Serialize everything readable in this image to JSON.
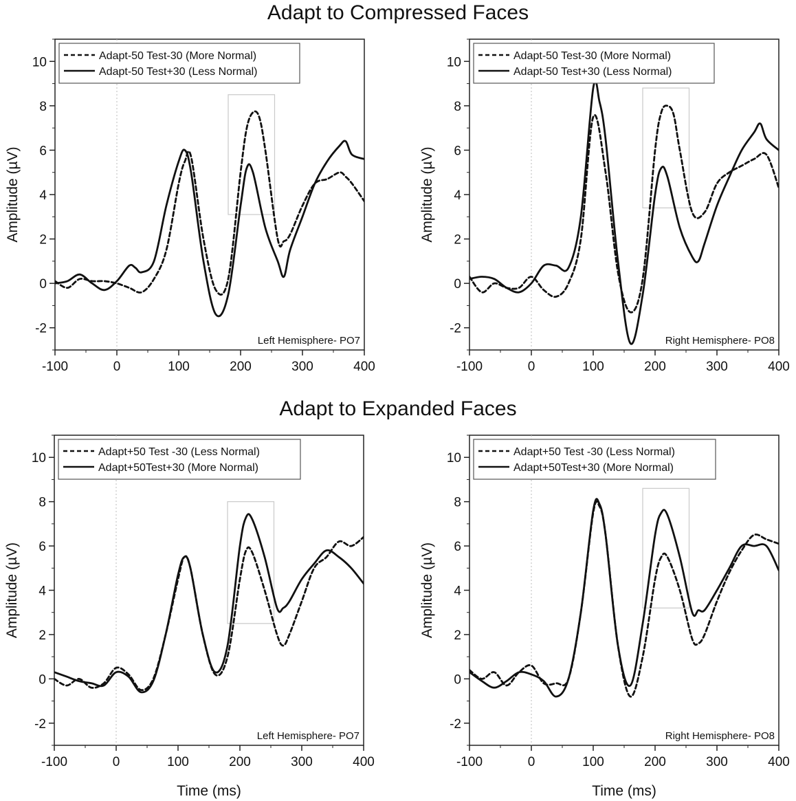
{
  "titles": {
    "top": "Adapt to Compressed Faces",
    "bottom": "Adapt to Expanded Faces"
  },
  "chart_data": [
    {
      "type": "line",
      "section": "top",
      "region_label": "Left Hemisphere- PO7",
      "ylabel": "Amplitude (µV)",
      "xlabel": "",
      "xlim": [
        -100,
        400
      ],
      "ylim": [
        -3,
        11
      ],
      "xticks": [
        -100,
        0,
        100,
        200,
        300,
        400
      ],
      "yticks": [
        -2,
        0,
        2,
        4,
        6,
        8,
        10
      ],
      "legend_position": "top-left",
      "highlight_window": {
        "x": [
          180,
          255
        ],
        "y": [
          3.1,
          8.5
        ]
      },
      "series": [
        {
          "name": "Adapt-50 Test-30 (More Normal)",
          "style": "dashed",
          "x": [
            -100,
            -80,
            -60,
            -40,
            -20,
            0,
            20,
            40,
            60,
            80,
            100,
            110,
            120,
            140,
            160,
            180,
            200,
            210,
            220,
            230,
            240,
            260,
            270,
            280,
            300,
            320,
            340,
            360,
            370,
            380,
            400
          ],
          "y": [
            0.1,
            -0.2,
            0.2,
            0.1,
            0.1,
            0.0,
            -0.2,
            -0.4,
            0.2,
            1.5,
            4.5,
            5.5,
            5.7,
            2.0,
            -0.3,
            0.2,
            5.0,
            7.0,
            7.7,
            7.5,
            6.0,
            2.0,
            1.9,
            2.2,
            3.5,
            4.5,
            4.7,
            5.0,
            4.8,
            4.5,
            3.7
          ]
        },
        {
          "name": "Adapt-50 Test+30 (Less Normal)",
          "style": "solid",
          "x": [
            -100,
            -80,
            -60,
            -40,
            -20,
            0,
            20,
            30,
            40,
            60,
            80,
            100,
            110,
            120,
            140,
            160,
            180,
            200,
            210,
            220,
            240,
            260,
            270,
            280,
            300,
            320,
            340,
            360,
            370,
            380,
            400
          ],
          "y": [
            0.0,
            0.1,
            0.4,
            0.0,
            -0.3,
            0.1,
            0.8,
            0.7,
            0.5,
            1.0,
            3.5,
            5.5,
            6.0,
            5.0,
            1.0,
            -1.4,
            -0.5,
            3.5,
            5.2,
            5.0,
            2.5,
            1.0,
            0.3,
            1.5,
            3.0,
            4.5,
            5.5,
            6.2,
            6.4,
            5.8,
            5.6
          ]
        }
      ]
    },
    {
      "type": "line",
      "section": "top",
      "region_label": "Right Hemisphere- PO8",
      "ylabel": "Amplitude (µV)",
      "xlabel": "",
      "xlim": [
        -100,
        400
      ],
      "ylim": [
        -3,
        11
      ],
      "xticks": [
        -100,
        0,
        100,
        200,
        300,
        400
      ],
      "yticks": [
        -2,
        0,
        2,
        4,
        6,
        8,
        10
      ],
      "legend_position": "top-left",
      "highlight_window": {
        "x": [
          180,
          255
        ],
        "y": [
          3.4,
          8.8
        ]
      },
      "series": [
        {
          "name": "Adapt-50 Test-30 (More Normal)",
          "style": "dashed",
          "x": [
            -100,
            -80,
            -60,
            -40,
            -20,
            0,
            20,
            40,
            60,
            80,
            100,
            120,
            140,
            160,
            180,
            200,
            210,
            220,
            230,
            240,
            260,
            280,
            300,
            320,
            340,
            360,
            380,
            400
          ],
          "y": [
            0.3,
            -0.4,
            0.0,
            -0.2,
            -0.2,
            0.3,
            -0.3,
            -0.6,
            0.0,
            2.0,
            7.5,
            5.0,
            0.5,
            -1.3,
            0.2,
            6.0,
            7.7,
            8.0,
            7.6,
            6.0,
            3.2,
            3.2,
            4.5,
            5.0,
            5.3,
            5.6,
            5.8,
            4.3
          ]
        },
        {
          "name": "Adapt-50 Test+30 (Less Normal)",
          "style": "solid",
          "x": [
            -100,
            -80,
            -60,
            -40,
            -20,
            0,
            20,
            40,
            60,
            80,
            100,
            110,
            120,
            140,
            160,
            180,
            200,
            210,
            220,
            240,
            260,
            270,
            280,
            300,
            320,
            340,
            360,
            370,
            380,
            400
          ],
          "y": [
            0.2,
            0.3,
            0.2,
            -0.2,
            -0.4,
            0.0,
            0.8,
            0.8,
            0.7,
            3.0,
            8.8,
            8.2,
            6.5,
            1.0,
            -2.7,
            -0.5,
            4.0,
            5.2,
            4.8,
            2.5,
            1.2,
            1.0,
            1.8,
            3.5,
            4.8,
            6.0,
            6.8,
            7.2,
            6.5,
            6.0
          ]
        }
      ]
    },
    {
      "type": "line",
      "section": "bottom",
      "region_label": "Left Hemisphere- PO7",
      "ylabel": "Amplitude (µV)",
      "xlabel": "Time (ms)",
      "xlim": [
        -100,
        400
      ],
      "ylim": [
        -3,
        11
      ],
      "xticks": [
        -100,
        0,
        100,
        200,
        300,
        400
      ],
      "yticks": [
        -2,
        0,
        2,
        4,
        6,
        8,
        10
      ],
      "legend_position": "top-left",
      "highlight_window": {
        "x": [
          180,
          255
        ],
        "y": [
          2.5,
          8.0
        ]
      },
      "series": [
        {
          "name": "Adapt+50 Test -30 (Less Normal)",
          "style": "dashed",
          "x": [
            -100,
            -80,
            -60,
            -40,
            -20,
            0,
            20,
            40,
            60,
            80,
            100,
            110,
            120,
            140,
            160,
            180,
            200,
            210,
            220,
            240,
            260,
            270,
            280,
            300,
            320,
            340,
            360,
            380,
            400
          ],
          "y": [
            0.0,
            -0.3,
            0.0,
            -0.4,
            -0.2,
            0.5,
            0.2,
            -0.5,
            0.0,
            2.0,
            4.5,
            5.5,
            5.0,
            2.0,
            0.2,
            1.0,
            4.5,
            5.8,
            5.7,
            4.0,
            2.0,
            1.5,
            2.0,
            3.5,
            5.0,
            5.5,
            6.2,
            6.0,
            6.4
          ]
        },
        {
          "name": "Adapt+50Test+30 (More Normal)",
          "style": "solid",
          "x": [
            -100,
            -80,
            -60,
            -40,
            -20,
            0,
            20,
            40,
            60,
            80,
            100,
            110,
            120,
            140,
            160,
            180,
            200,
            210,
            220,
            240,
            260,
            270,
            280,
            300,
            320,
            340,
            360,
            380,
            400
          ],
          "y": [
            0.3,
            0.1,
            -0.1,
            -0.2,
            -0.3,
            0.3,
            0.1,
            -0.6,
            -0.1,
            2.0,
            4.7,
            5.5,
            5.0,
            2.0,
            0.3,
            1.5,
            6.0,
            7.3,
            7.2,
            5.5,
            3.2,
            3.2,
            3.5,
            4.5,
            5.2,
            5.8,
            5.5,
            5.0,
            4.3
          ]
        }
      ]
    },
    {
      "type": "line",
      "section": "bottom",
      "region_label": "Right Hemisphere- PO8",
      "ylabel": "Amplitude (µV)",
      "xlabel": "Time (ms)",
      "xlim": [
        -100,
        400
      ],
      "ylim": [
        -3,
        11
      ],
      "xticks": [
        -100,
        0,
        100,
        200,
        300,
        400
      ],
      "yticks": [
        -2,
        0,
        2,
        4,
        6,
        8,
        10
      ],
      "legend_position": "top-left",
      "highlight_window": {
        "x": [
          180,
          255
        ],
        "y": [
          3.2,
          8.6
        ]
      },
      "series": [
        {
          "name": "Adapt+50 Test -30 (Less Normal)",
          "style": "dashed",
          "x": [
            -100,
            -80,
            -60,
            -40,
            -20,
            0,
            20,
            40,
            60,
            80,
            100,
            110,
            120,
            140,
            160,
            180,
            200,
            210,
            220,
            240,
            260,
            270,
            280,
            300,
            320,
            340,
            360,
            380,
            400
          ],
          "y": [
            0.4,
            0.0,
            0.3,
            -0.3,
            0.3,
            0.6,
            -0.2,
            -0.2,
            0.0,
            3.0,
            7.5,
            7.8,
            6.5,
            1.5,
            -0.8,
            1.0,
            4.5,
            5.5,
            5.5,
            4.0,
            1.8,
            1.6,
            2.0,
            3.5,
            4.8,
            5.8,
            6.5,
            6.3,
            6.1
          ]
        },
        {
          "name": "Adapt+50Test+30 (More Normal)",
          "style": "solid",
          "x": [
            -100,
            -80,
            -60,
            -40,
            -20,
            0,
            20,
            40,
            60,
            80,
            100,
            110,
            120,
            140,
            160,
            180,
            200,
            210,
            220,
            240,
            260,
            270,
            280,
            300,
            320,
            340,
            360,
            380,
            400
          ],
          "y": [
            0.3,
            -0.1,
            -0.4,
            -0.1,
            0.3,
            0.2,
            -0.1,
            -0.8,
            0.0,
            3.0,
            7.6,
            7.9,
            6.5,
            1.5,
            -0.3,
            2.5,
            6.5,
            7.5,
            7.4,
            5.5,
            3.0,
            3.1,
            3.1,
            4.0,
            5.0,
            6.0,
            6.0,
            6.0,
            4.9
          ]
        }
      ]
    }
  ]
}
